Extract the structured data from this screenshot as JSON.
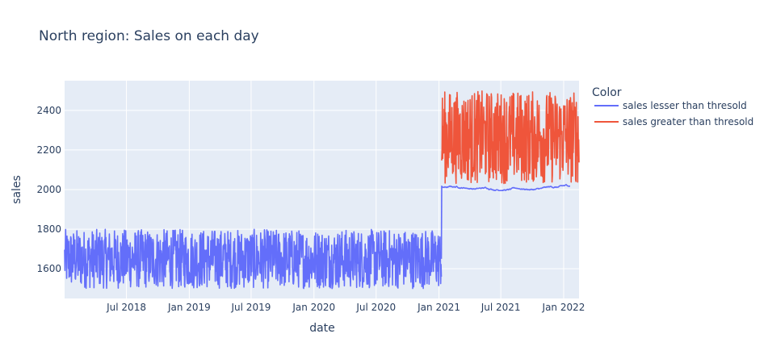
{
  "chart_data": {
    "type": "line",
    "title": "North region: Sales on each day",
    "xlabel": "date",
    "ylabel": "sales",
    "x_range": [
      "2018-01-01",
      "2022-02-15"
    ],
    "ylim": [
      1450,
      2550
    ],
    "x_ticks": [
      "Jul 2018",
      "Jan 2019",
      "Jul 2019",
      "Jan 2020",
      "Jul 2020",
      "Jan 2021",
      "Jul 2021",
      "Jan 2022"
    ],
    "x_tick_dates": [
      "2018-07-01",
      "2019-01-01",
      "2019-07-01",
      "2020-01-01",
      "2020-07-01",
      "2021-01-01",
      "2021-07-01",
      "2022-01-01"
    ],
    "y_ticks": [
      1600,
      1800,
      2000,
      2200,
      2400
    ],
    "grid": true,
    "plot_background": "#e5ecf6",
    "legend": {
      "title": "Color",
      "placement": "right"
    },
    "series": [
      {
        "name": "sales lesser than thresold",
        "color": "#636efa",
        "segments": [
          {
            "from": "2018-01-01",
            "to": "2021-01-08",
            "min": 1500,
            "max": 1800
          },
          {
            "from": "2021-01-09",
            "to": "2022-01-20",
            "min": 1995,
            "max": 2025
          }
        ]
      },
      {
        "name": "sales greater than thresold",
        "color": "#ef553b",
        "segments": [
          {
            "from": "2021-01-09",
            "to": "2022-02-15",
            "min": 2030,
            "max": 2500
          }
        ]
      }
    ]
  }
}
